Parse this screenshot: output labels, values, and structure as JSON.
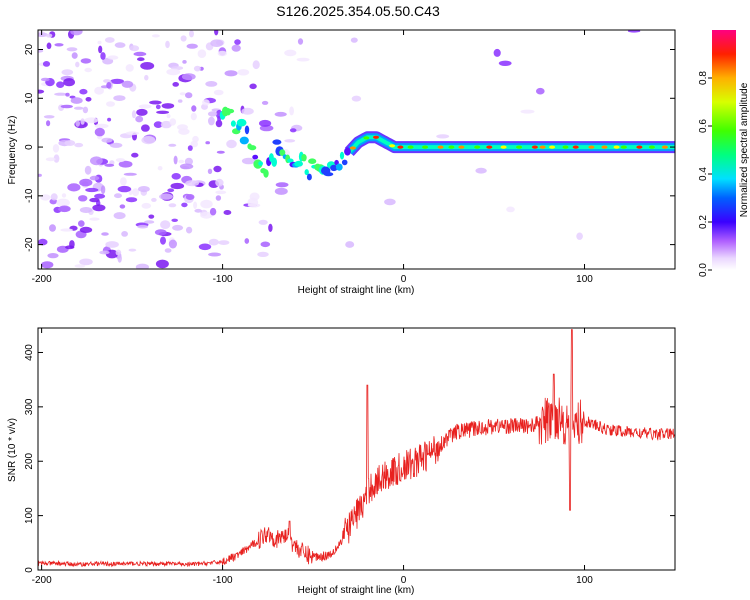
{
  "title": "S126.2025.354.05.50.C43",
  "chart_data": [
    {
      "id": "spectrogram",
      "type": "heatmap",
      "xlabel": "Height of straight line (km)",
      "ylabel": "Frequency (Hz)",
      "xlim": [
        -202,
        150
      ],
      "ylim": [
        -25,
        24
      ],
      "xticks": [
        -200,
        -100,
        0,
        100
      ],
      "yticks": [
        -20,
        -10,
        0,
        10,
        20
      ],
      "colorbar": {
        "label": "Normalized spectral amplitude",
        "range": [
          0.0,
          1.0
        ],
        "ticks": [
          "0.0",
          "0.2",
          "0.4",
          "0.6",
          "0.8"
        ]
      },
      "ridge": {
        "x": [
          -100,
          -95,
          -90,
          -85,
          -80,
          -75,
          -70,
          -65,
          -60,
          -55,
          -50,
          -45,
          -40,
          -35,
          -30,
          -25,
          -20,
          -15,
          -10,
          -5,
          0,
          10,
          20,
          40,
          60,
          80,
          90,
          100,
          120,
          150
        ],
        "freq": [
          7,
          6,
          4,
          1,
          -2,
          -4,
          0,
          -2,
          -3,
          -4,
          -5,
          -6,
          -4,
          -2,
          -1,
          1,
          2,
          2,
          1,
          0,
          0,
          0,
          0,
          0,
          0,
          0,
          0,
          0,
          0,
          0
        ]
      }
    },
    {
      "id": "snr",
      "type": "line",
      "xlabel": "Height of straight line (km)",
      "ylabel": "SNR (10 * v/v)",
      "xlim": [
        -202,
        150
      ],
      "ylim": [
        0,
        445
      ],
      "xticks": [
        -200,
        -100,
        0,
        100
      ],
      "yticks": [
        0,
        100,
        200,
        300,
        400
      ],
      "series": [
        {
          "name": "SNR",
          "color": "#e8211f",
          "x": [
            -202,
            -190,
            -180,
            -170,
            -160,
            -150,
            -140,
            -130,
            -120,
            -110,
            -100,
            -90,
            -80,
            -75,
            -70,
            -65,
            -60,
            -55,
            -50,
            -45,
            -40,
            -35,
            -30,
            -25,
            -22,
            -20,
            -15,
            -10,
            -5,
            0,
            5,
            10,
            15,
            20,
            25,
            30,
            40,
            50,
            60,
            70,
            80,
            85,
            90,
            92,
            95,
            100,
            110,
            120,
            130,
            140,
            150
          ],
          "y": [
            12,
            12,
            10,
            12,
            11,
            12,
            11,
            12,
            10,
            12,
            15,
            30,
            55,
            70,
            55,
            65,
            45,
            30,
            25,
            25,
            30,
            50,
            80,
            110,
            120,
            150,
            160,
            175,
            180,
            190,
            195,
            205,
            215,
            230,
            245,
            255,
            260,
            265,
            265,
            265,
            275,
            285,
            270,
            275,
            265,
            275,
            260,
            255,
            252,
            250,
            250
          ]
        }
      ],
      "spikes": [
        {
          "x": -20,
          "y": 340
        },
        {
          "x": -63,
          "y": 90
        },
        {
          "x": 83,
          "y": 360
        },
        {
          "x": 93,
          "y": 442
        },
        {
          "x": 92,
          "y": 110
        }
      ]
    }
  ]
}
